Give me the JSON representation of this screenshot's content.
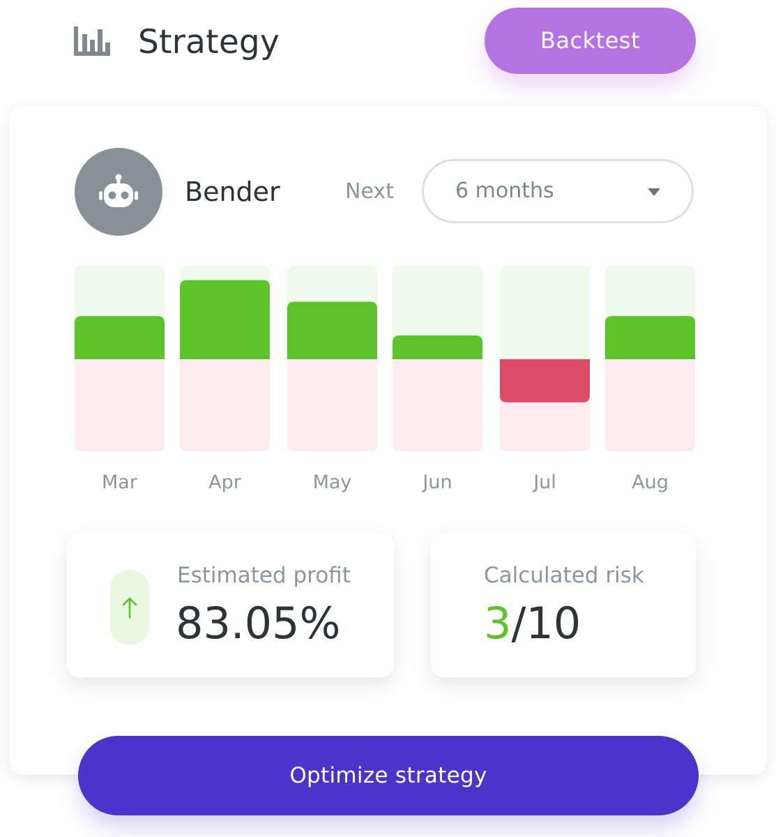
{
  "header": {
    "icon": "bar-chart-icon",
    "title": "Strategy",
    "backtest_label": "Backtest"
  },
  "bot": {
    "avatar_icon": "robot-icon",
    "name": "Bender",
    "next_label": "Next",
    "period_value": "6 months",
    "period_caret_icon": "caret-down-icon"
  },
  "chart_data": {
    "type": "bar",
    "categories": [
      "Mar",
      "Apr",
      "May",
      "Jun",
      "Jul",
      "Aug"
    ],
    "values": [
      60,
      110,
      80,
      33,
      -60,
      60
    ],
    "ylim": [
      -130,
      130
    ],
    "colors": {
      "positive": "#5cc42a",
      "negative": "#dc4c66",
      "positive_background": "#eefaea",
      "negative_background": "#fdecef"
    }
  },
  "stats": {
    "profit": {
      "label": "Estimated profit",
      "value": "83.05%",
      "trend_icon": "arrow-up-icon"
    },
    "risk": {
      "label": "Calculated risk",
      "score": "3",
      "max": "/10"
    }
  },
  "actions": {
    "optimize_label": "Optimize strategy"
  },
  "colors": {
    "brand_purple": "#4c33c9",
    "backtest_lilac": "#b374e2",
    "positive_green": "#5cc42a",
    "negative_red": "#dc4c66"
  }
}
